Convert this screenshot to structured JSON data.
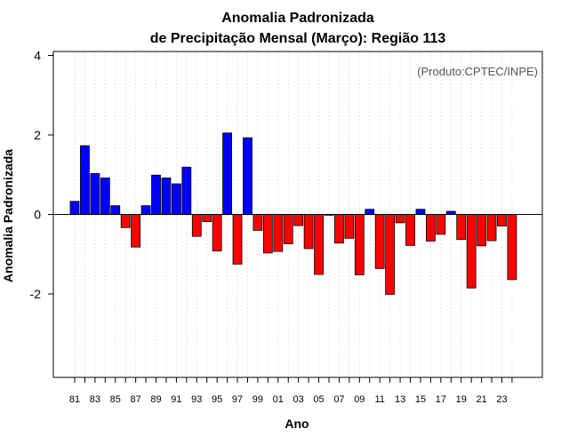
{
  "chart_data": {
    "type": "bar",
    "title": "Anomalia Padronizada",
    "subtitle": "de Precipitação Mensal (Março): Região 113",
    "xlabel": "Ano",
    "ylabel": "Anomalia Padronizada",
    "credit": "(Produto:CPTEC/INPE)",
    "ylim": [
      -4.1,
      4.1
    ],
    "yticks": [
      -2,
      0,
      2,
      4
    ],
    "ytick_labels": [
      "-2",
      "0",
      "2",
      "4"
    ],
    "categories": [
      "81",
      "82",
      "83",
      "84",
      "85",
      "86",
      "87",
      "88",
      "89",
      "90",
      "91",
      "92",
      "93",
      "94",
      "95",
      "96",
      "97",
      "98",
      "99",
      "00",
      "01",
      "02",
      "03",
      "04",
      "05",
      "06",
      "07",
      "08",
      "09",
      "10",
      "11",
      "12",
      "13",
      "14",
      "15",
      "16",
      "17",
      "18",
      "19",
      "20",
      "21",
      "22",
      "23",
      "24"
    ],
    "xtick_labels": [
      "81",
      "83",
      "85",
      "87",
      "89",
      "91",
      "93",
      "95",
      "97",
      "99",
      "01",
      "03",
      "05",
      "07",
      "09",
      "11",
      "13",
      "15",
      "17",
      "19",
      "21",
      "23"
    ],
    "values": [
      0.33,
      1.73,
      1.03,
      0.92,
      0.22,
      -0.33,
      -0.82,
      0.22,
      0.99,
      0.92,
      0.77,
      1.19,
      -0.55,
      -0.18,
      -0.92,
      2.05,
      -1.25,
      1.93,
      -0.4,
      -0.97,
      -0.93,
      -0.74,
      -0.28,
      -0.86,
      -1.51,
      -0.02,
      -0.72,
      -0.6,
      -1.52,
      0.13,
      -1.36,
      -2.01,
      -0.21,
      -0.78,
      0.13,
      -0.67,
      -0.5,
      0.08,
      -0.63,
      -1.85,
      -0.79,
      -0.66,
      -0.29,
      -1.64
    ],
    "grid": "vertical-dotted",
    "colors": {
      "positive": "#0000ff",
      "negative": "#ff0000",
      "outline": "#000000",
      "grid": "#d3d3d3"
    }
  }
}
